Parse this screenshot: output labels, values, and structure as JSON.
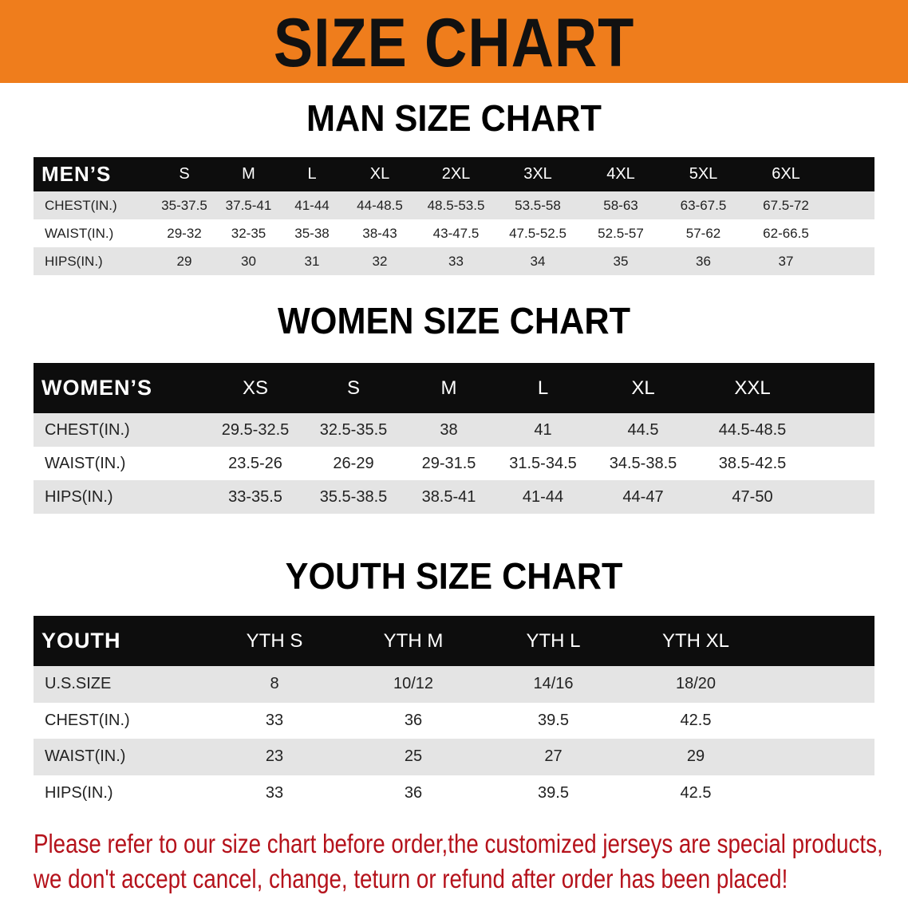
{
  "banner_title": "SIZE CHART",
  "men": {
    "title": "MAN SIZE CHART",
    "header": [
      "MEN’S",
      "S",
      "M",
      "L",
      "XL",
      "2XL",
      "3XL",
      "4XL",
      "5XL",
      "6XL"
    ],
    "rows": [
      [
        "CHEST(IN.)",
        "35-37.5",
        "37.5-41",
        "41-44",
        "44-48.5",
        "48.5-53.5",
        "53.5-58",
        "58-63",
        "63-67.5",
        "67.5-72"
      ],
      [
        "WAIST(IN.)",
        "29-32",
        "32-35",
        "35-38",
        "38-43",
        "43-47.5",
        "47.5-52.5",
        "52.5-57",
        "57-62",
        "62-66.5"
      ],
      [
        "HIPS(IN.)",
        "29",
        "30",
        "31",
        "32",
        "33",
        "34",
        "35",
        "36",
        "37"
      ]
    ]
  },
  "women": {
    "title": "WOMEN SIZE CHART",
    "header": [
      "WOMEN’S",
      "XS",
      "S",
      "M",
      "L",
      "XL",
      "XXL"
    ],
    "rows": [
      [
        "CHEST(IN.)",
        "29.5-32.5",
        "32.5-35.5",
        "38",
        "41",
        "44.5",
        "44.5-48.5"
      ],
      [
        "WAIST(IN.)",
        "23.5-26",
        "26-29",
        "29-31.5",
        "31.5-34.5",
        "34.5-38.5",
        "38.5-42.5"
      ],
      [
        "HIPS(IN.)",
        "33-35.5",
        "35.5-38.5",
        "38.5-41",
        "41-44",
        "44-47",
        "47-50"
      ]
    ]
  },
  "youth": {
    "title": "YOUTH SIZE CHART",
    "header": [
      "YOUTH",
      "YTH S",
      "YTH M",
      "YTH L",
      "YTH XL"
    ],
    "rows": [
      [
        "U.S.SIZE",
        "8",
        "10/12",
        "14/16",
        "18/20"
      ],
      [
        "CHEST(IN.)",
        "33",
        "36",
        "39.5",
        "42.5"
      ],
      [
        "WAIST(IN.)",
        "23",
        "25",
        "27",
        "29"
      ],
      [
        "HIPS(IN.)",
        "33",
        "36",
        "39.5",
        "42.5"
      ]
    ]
  },
  "notice": [
    "Please refer to our size chart before order,the customized jerseys are special products,",
    "we don't accept cancel, change, teturn or refund after order has been placed!"
  ],
  "colors": {
    "banner": "#ef7d1c",
    "header_row": "#0d0d0d",
    "stripe": "#e4e4e4",
    "notice": "#b5121b"
  }
}
